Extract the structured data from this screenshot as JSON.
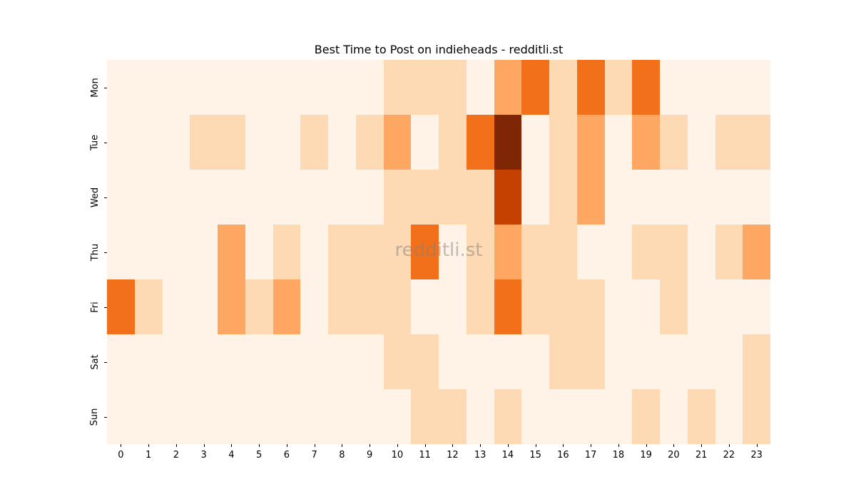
{
  "chart_data": {
    "type": "heatmap",
    "title": "Best Time to Post on indieheads - redditli.st",
    "xlabel": "",
    "ylabel": "",
    "x": [
      "0",
      "1",
      "2",
      "3",
      "4",
      "5",
      "6",
      "7",
      "8",
      "9",
      "10",
      "11",
      "12",
      "13",
      "14",
      "15",
      "16",
      "17",
      "18",
      "19",
      "20",
      "21",
      "22",
      "23"
    ],
    "y": [
      "Mon",
      "Tue",
      "Wed",
      "Thu",
      "Fri",
      "Sat",
      "Sun"
    ],
    "colormap": "Oranges",
    "level_colors": [
      "#fff3e7",
      "#fdd9b4",
      "#fda762",
      "#f3701b",
      "#c54102",
      "#7f2704"
    ],
    "values": [
      [
        0,
        0,
        0,
        0,
        0,
        0,
        0,
        0,
        0,
        0,
        1,
        1,
        1,
        0,
        2,
        3,
        1,
        3,
        1,
        3,
        0,
        0,
        0,
        0
      ],
      [
        0,
        0,
        0,
        1,
        1,
        0,
        0,
        1,
        0,
        1,
        2,
        0,
        1,
        3,
        5,
        0,
        1,
        2,
        0,
        2,
        1,
        0,
        1,
        1
      ],
      [
        0,
        0,
        0,
        0,
        0,
        0,
        0,
        0,
        0,
        0,
        1,
        1,
        1,
        1,
        4,
        0,
        1,
        2,
        0,
        0,
        0,
        0,
        0,
        0
      ],
      [
        0,
        0,
        0,
        0,
        2,
        0,
        1,
        0,
        1,
        1,
        1,
        3,
        0,
        1,
        2,
        1,
        1,
        0,
        0,
        1,
        1,
        0,
        1,
        2
      ],
      [
        3,
        1,
        0,
        0,
        2,
        1,
        2,
        0,
        1,
        1,
        1,
        0,
        0,
        1,
        3,
        1,
        1,
        1,
        0,
        0,
        1,
        0,
        0,
        0
      ],
      [
        0,
        0,
        0,
        0,
        0,
        0,
        0,
        0,
        0,
        0,
        1,
        1,
        0,
        0,
        0,
        0,
        1,
        1,
        0,
        0,
        0,
        0,
        0,
        1
      ],
      [
        0,
        0,
        0,
        0,
        0,
        0,
        0,
        0,
        0,
        0,
        0,
        1,
        1,
        0,
        1,
        0,
        0,
        0,
        0,
        1,
        0,
        1,
        0,
        1
      ]
    ],
    "colorbar": false,
    "grid": false
  },
  "watermark": "redditli.st"
}
